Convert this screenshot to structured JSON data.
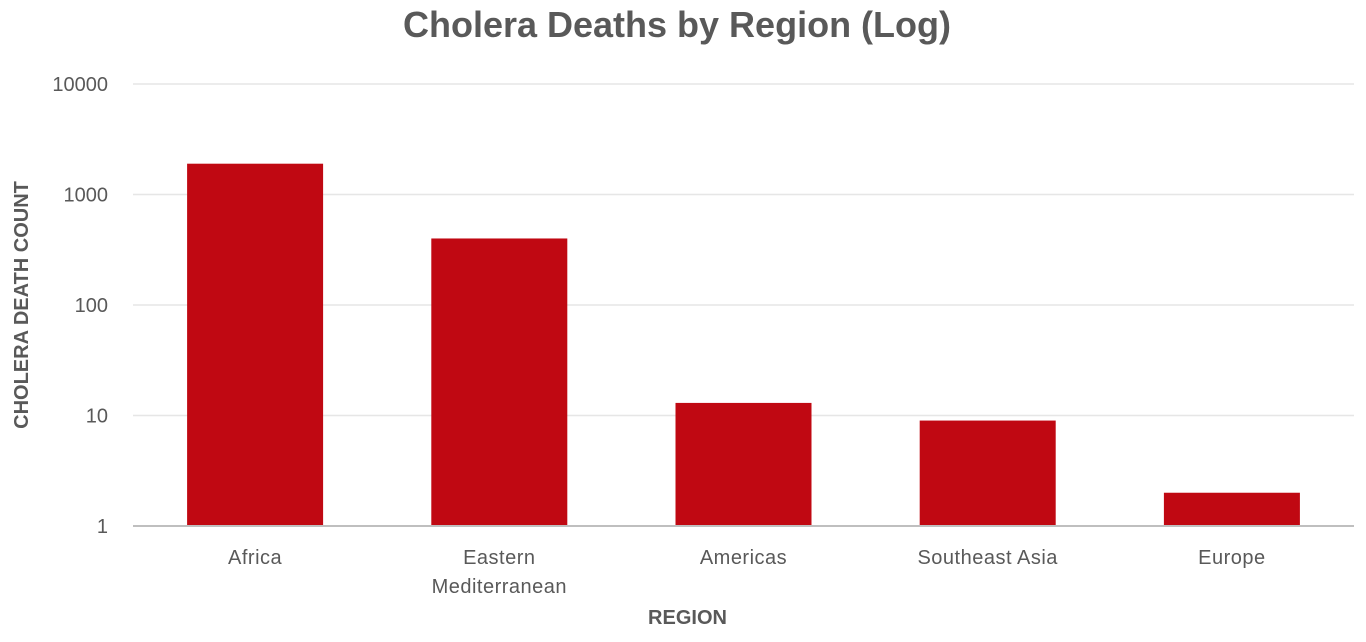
{
  "chart_data": {
    "type": "bar",
    "title": "Cholera Deaths by Region (Log)",
    "xlabel": "REGION",
    "ylabel": "CHOLERA DEATH COUNT",
    "y_scale": "log10",
    "ylim": [
      1,
      10000
    ],
    "y_ticks": [
      "1",
      "10",
      "100",
      "1000",
      "10000"
    ],
    "categories": [
      [
        "Africa"
      ],
      [
        "Eastern",
        "Mediterranean"
      ],
      [
        "Americas"
      ],
      [
        "Southeast Asia"
      ],
      [
        "Europe"
      ]
    ],
    "values": [
      1900,
      400,
      13,
      9,
      2
    ],
    "grid": true,
    "legend": "none",
    "colors": {
      "bar": "#C00812",
      "grid": "#E6E6E6",
      "axis": "#BFBFBF",
      "text": "#595959"
    }
  }
}
